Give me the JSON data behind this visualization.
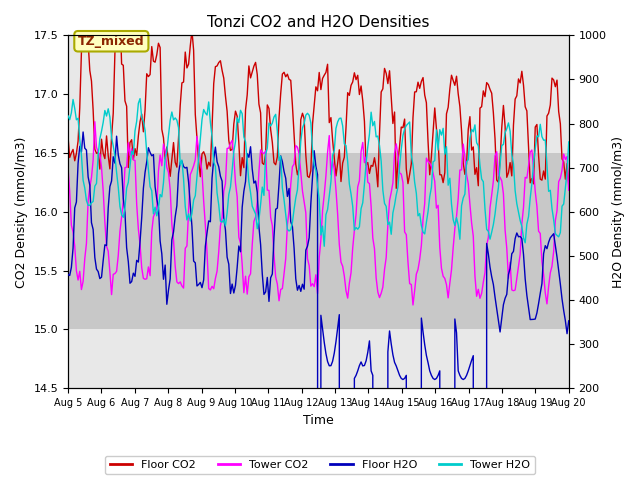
{
  "title": "Tonzi CO2 and H2O Densities",
  "xlabel": "Time",
  "ylabel_left": "CO2 Density (mmol/m3)",
  "ylabel_right": "H2O Density (mmol/m3)",
  "ylim_left": [
    14.5,
    17.5
  ],
  "ylim_right": [
    200,
    1000
  ],
  "xlim": [
    0,
    15
  ],
  "xtick_labels": [
    "Aug 5",
    "Aug 6",
    "Aug 7",
    "Aug 8",
    "Aug 9",
    "Aug 10",
    "Aug 11",
    "Aug 12",
    "Aug 13",
    "Aug 14",
    "Aug 15",
    "Aug 16",
    "Aug 17",
    "Aug 18",
    "Aug 19",
    "Aug 20"
  ],
  "xtick_positions": [
    0,
    1,
    2,
    3,
    4,
    5,
    6,
    7,
    8,
    9,
    10,
    11,
    12,
    13,
    14,
    15
  ],
  "color_floor_co2": "#cc0000",
  "color_tower_co2": "#ff00ff",
  "color_floor_h2o": "#0000bb",
  "color_tower_h2o": "#00cccc",
  "annotation_text": "TZ_mixed",
  "bg_rect_ymin": 15.0,
  "bg_rect_ymax": 16.5,
  "legend_labels": [
    "Floor CO2",
    "Tower CO2",
    "Floor H2O",
    "Tower H2O"
  ],
  "lw": 1.0
}
